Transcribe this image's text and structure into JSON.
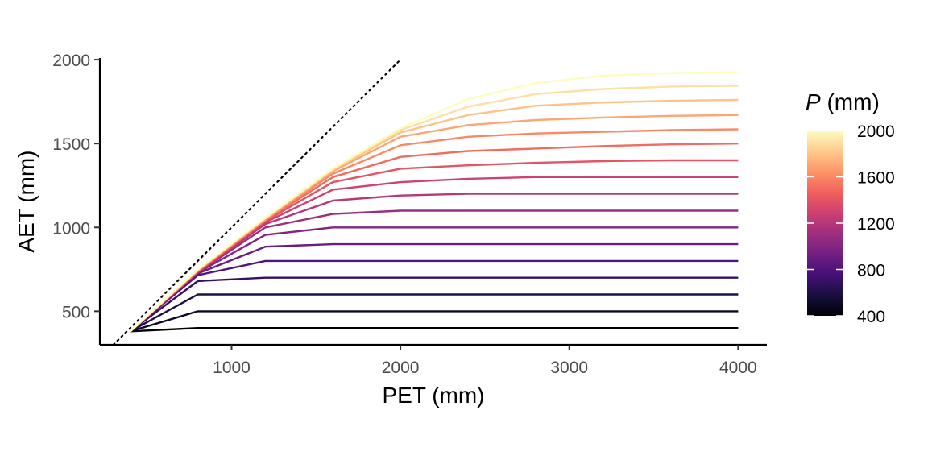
{
  "chart_data": {
    "type": "line",
    "title": "",
    "xlabel": "PET (mm)",
    "ylabel": "AET (mm)",
    "xlim": [
      220,
      4170
    ],
    "ylim": [
      300,
      2010
    ],
    "x_ticks": [
      1000,
      2000,
      3000,
      4000
    ],
    "y_ticks": [
      500,
      1000,
      1500,
      2000
    ],
    "x": [
      400,
      800,
      1200,
      1600,
      2000,
      2400,
      2800,
      3200,
      3600,
      4000
    ],
    "reference_line": {
      "style": "dotted",
      "x": [
        300,
        2000
      ],
      "y": [
        300,
        2000
      ]
    },
    "series": [
      {
        "P": 400,
        "values": [
          380,
          400,
          400,
          400,
          400,
          400,
          400,
          400,
          400,
          400
        ]
      },
      {
        "P": 500,
        "values": [
          380,
          500,
          500,
          500,
          500,
          500,
          500,
          500,
          500,
          500
        ]
      },
      {
        "P": 600,
        "values": [
          380,
          600,
          600,
          600,
          600,
          600,
          600,
          600,
          600,
          600
        ]
      },
      {
        "P": 700,
        "values": [
          380,
          680,
          700,
          700,
          700,
          700,
          700,
          700,
          700,
          700
        ]
      },
      {
        "P": 800,
        "values": [
          380,
          715,
          800,
          800,
          800,
          800,
          800,
          800,
          800,
          800
        ]
      },
      {
        "P": 900,
        "values": [
          380,
          725,
          885,
          900,
          900,
          900,
          900,
          900,
          900,
          900
        ]
      },
      {
        "P": 1000,
        "values": [
          380,
          730,
          955,
          1000,
          1000,
          1000,
          1000,
          1000,
          1000,
          1000
        ]
      },
      {
        "P": 1100,
        "values": [
          380,
          732,
          1000,
          1080,
          1100,
          1100,
          1100,
          1100,
          1100,
          1100
        ]
      },
      {
        "P": 1200,
        "values": [
          380,
          734,
          1020,
          1160,
          1190,
          1200,
          1200,
          1200,
          1200,
          1200
        ]
      },
      {
        "P": 1300,
        "values": [
          380,
          736,
          1030,
          1225,
          1270,
          1290,
          1300,
          1300,
          1300,
          1300
        ]
      },
      {
        "P": 1400,
        "values": [
          380,
          738,
          1038,
          1270,
          1350,
          1370,
          1385,
          1395,
          1400,
          1400
        ]
      },
      {
        "P": 1500,
        "values": [
          380,
          740,
          1042,
          1300,
          1420,
          1455,
          1470,
          1485,
          1495,
          1500
        ]
      },
      {
        "P": 1600,
        "values": [
          380,
          742,
          1046,
          1320,
          1490,
          1540,
          1560,
          1570,
          1580,
          1585
        ]
      },
      {
        "P": 1700,
        "values": [
          380,
          744,
          1050,
          1335,
          1540,
          1610,
          1640,
          1655,
          1665,
          1670
        ]
      },
      {
        "P": 1800,
        "values": [
          380,
          746,
          1053,
          1343,
          1565,
          1670,
          1725,
          1745,
          1755,
          1760
        ]
      },
      {
        "P": 1900,
        "values": [
          380,
          748,
          1056,
          1348,
          1580,
          1720,
          1795,
          1825,
          1840,
          1845
        ]
      },
      {
        "P": 2000,
        "values": [
          380,
          750,
          1058,
          1352,
          1590,
          1765,
          1860,
          1905,
          1920,
          1925
        ]
      }
    ],
    "legend": {
      "title_symbol": "P",
      "title_unit": " (mm)",
      "labels": [
        "2000",
        "1600",
        "1200",
        "800",
        "400"
      ],
      "label_values": [
        2000,
        1600,
        1200,
        800,
        400
      ],
      "range": [
        400,
        2000
      ],
      "colormap": [
        "#000004",
        "#180f3e",
        "#451077",
        "#721f81",
        "#9f2f7f",
        "#cd4071",
        "#f1605d",
        "#fd9567",
        "#feca8d",
        "#fcfdbf"
      ],
      "placement": "right"
    },
    "grid": false
  }
}
